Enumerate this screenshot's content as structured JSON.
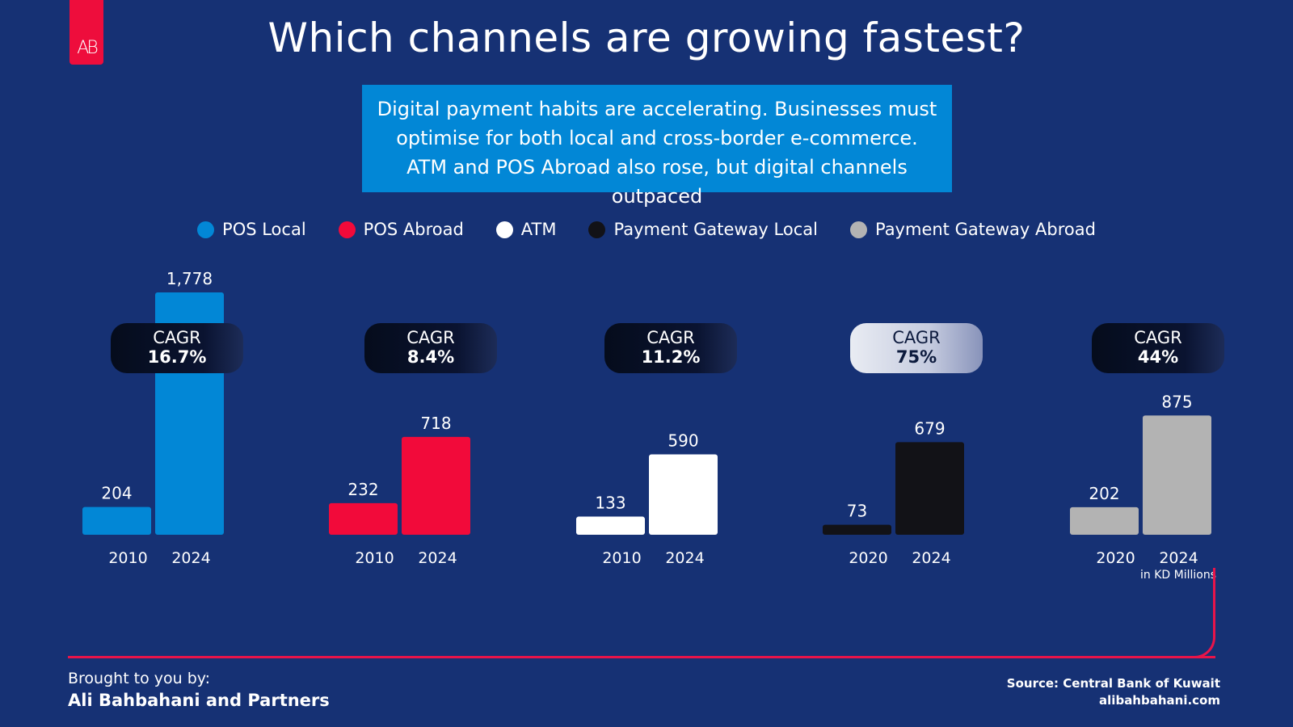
{
  "logo": {
    "text": "AB"
  },
  "title": "Which channels are growing fastest?",
  "callout": "Digital payment habits are accelerating. Businesses must optimise for both local and cross-border e-commerce. ATM and POS Abroad also rose, but digital channels outpaced",
  "colors": {
    "background": "#163174",
    "pos_local": "#0287d6",
    "pos_abroad": "#f20a3a",
    "atm": "#ffffff",
    "gateway_local": "#121217",
    "gateway_abroad": "#b3b3b3",
    "accent": "#e8144a"
  },
  "legend": [
    {
      "label": "POS Local",
      "color": "#0287d6"
    },
    {
      "label": "POS Abroad",
      "color": "#f20a3a"
    },
    {
      "label": "ATM",
      "color": "#ffffff"
    },
    {
      "label": "Payment Gateway Local",
      "color": "#121217"
    },
    {
      "label": "Payment Gateway Abroad",
      "color": "#b3b3b3"
    }
  ],
  "chart_data": {
    "type": "bar",
    "title": "Which channels are growing fastest?",
    "units": "in KD Millions",
    "series": [
      {
        "name": "POS Local",
        "cagr_label": "CAGR",
        "cagr_value": "16.7%",
        "years": [
          "2010",
          "2024"
        ],
        "values": [
          204,
          1778
        ],
        "value_labels": [
          "204",
          "1,778"
        ],
        "color": "#0287d6",
        "pill": "dark"
      },
      {
        "name": "POS Abroad",
        "cagr_label": "CAGR",
        "cagr_value": "8.4%",
        "years": [
          "2010",
          "2024"
        ],
        "values": [
          232,
          718
        ],
        "value_labels": [
          "232",
          "718"
        ],
        "color": "#f20a3a",
        "pill": "dark"
      },
      {
        "name": "ATM",
        "cagr_label": "CAGR",
        "cagr_value": "11.2%",
        "years": [
          "2010",
          "2024"
        ],
        "values": [
          133,
          590
        ],
        "value_labels": [
          "133",
          "590"
        ],
        "color": "#ffffff",
        "pill": "dark"
      },
      {
        "name": "Payment Gateway Local",
        "cagr_label": "CAGR",
        "cagr_value": "75%",
        "years": [
          "2020",
          "2024"
        ],
        "values": [
          73,
          679
        ],
        "value_labels": [
          "73",
          "679"
        ],
        "color": "#121217",
        "pill": "light"
      },
      {
        "name": "Payment Gateway Abroad",
        "cagr_label": "CAGR",
        "cagr_value": "44%",
        "years": [
          "2020",
          "2024"
        ],
        "values": [
          202,
          875
        ],
        "value_labels": [
          "202",
          "875"
        ],
        "color": "#b3b3b3",
        "pill": "dark"
      }
    ]
  },
  "footer": {
    "credit_label": "Brought to you by:",
    "credit_name": "Ali Bahbahani and Partners",
    "source": "Source: Central Bank of Kuwait",
    "website": "alibahbahani.com"
  }
}
